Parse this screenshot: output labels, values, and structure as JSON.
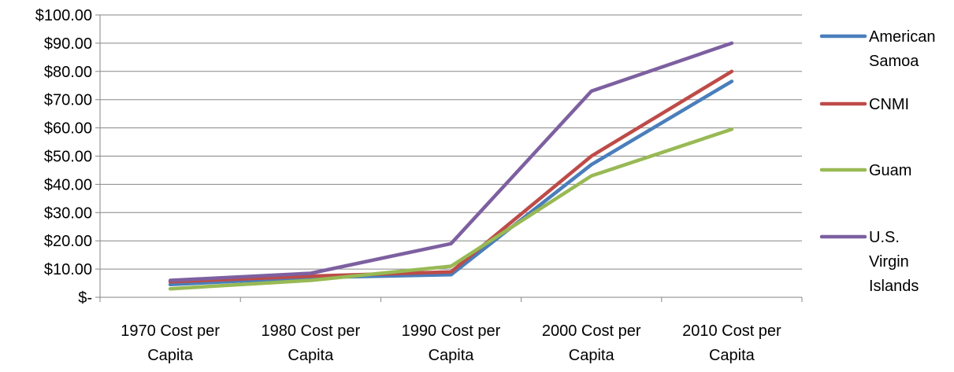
{
  "chart_data": {
    "type": "line",
    "title": "",
    "xlabel": "",
    "ylabel": "",
    "categories": [
      [
        "1970 Cost per",
        "Capita"
      ],
      [
        "1980 Cost per",
        "Capita"
      ],
      [
        "1990 Cost per",
        "Capita"
      ],
      [
        "2000 Cost per",
        "Capita"
      ],
      [
        "2010 Cost per",
        "Capita"
      ]
    ],
    "ylim": [
      0,
      100
    ],
    "y_tick_values": [
      0,
      10,
      20,
      30,
      40,
      50,
      60,
      70,
      80,
      90,
      100
    ],
    "y_tick_labels": [
      "$-",
      "$10.00",
      "$20.00",
      "$30.00",
      "$40.00",
      "$50.00",
      "$60.00",
      "$70.00",
      "$80.00",
      "$90.00",
      "$100.00"
    ],
    "grid": true,
    "legend_position": "right",
    "series": [
      {
        "name": [
          "American",
          "Samoa"
        ],
        "color": "#4a7ebb",
        "values": [
          4.5,
          7.0,
          8.0,
          47.0,
          76.5
        ]
      },
      {
        "name": [
          "CNMI"
        ],
        "color": "#be4b48",
        "values": [
          5.5,
          7.5,
          9.0,
          50.0,
          80.0
        ]
      },
      {
        "name": [
          "Guam"
        ],
        "color": "#98b954",
        "values": [
          3.0,
          6.0,
          11.0,
          43.0,
          59.5
        ]
      },
      {
        "name": [
          "U.S.",
          "Virgin",
          "Islands"
        ],
        "color": "#7d60a0",
        "values": [
          6.0,
          8.5,
          19.0,
          73.0,
          90.0
        ]
      }
    ]
  }
}
